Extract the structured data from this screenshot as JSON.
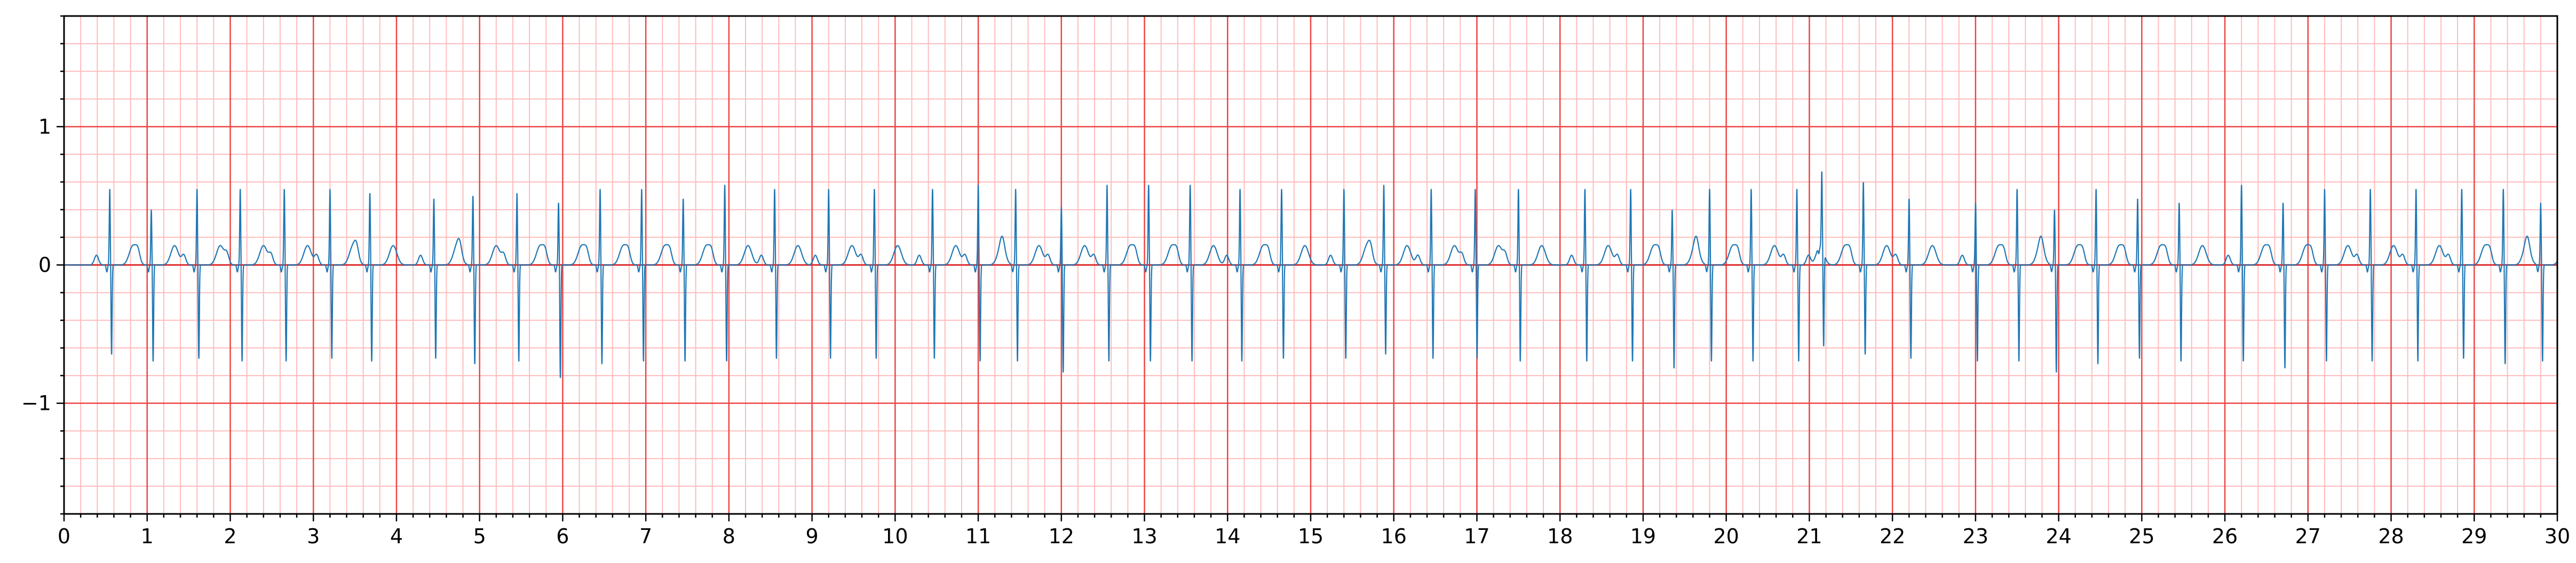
{
  "chart_data": {
    "type": "line",
    "title": "",
    "xlabel": "",
    "ylabel": "",
    "xlim": [
      0,
      30
    ],
    "ylim": [
      -1.8,
      1.8
    ],
    "x_ticks": [
      0,
      1,
      2,
      3,
      4,
      5,
      6,
      7,
      8,
      9,
      10,
      11,
      12,
      13,
      14,
      15,
      16,
      17,
      18,
      19,
      20,
      21,
      22,
      23,
      24,
      25,
      26,
      27,
      28,
      29,
      30
    ],
    "x_tick_labels": [
      "0",
      "1",
      "2",
      "3",
      "4",
      "5",
      "6",
      "7",
      "8",
      "9",
      "10",
      "11",
      "12",
      "13",
      "14",
      "15",
      "16",
      "17",
      "18",
      "19",
      "20",
      "21",
      "22",
      "23",
      "24",
      "25",
      "26",
      "27",
      "28",
      "29",
      "30"
    ],
    "y_ticks": [
      -1,
      0,
      1
    ],
    "y_tick_labels": [
      "−1",
      "0",
      "1"
    ],
    "grid": {
      "major": true,
      "minor": true,
      "major_step_x": 1,
      "minor_step_x": 0.2,
      "major_step_y": 1,
      "minor_step_y": 0.2,
      "major_color": "#ee4444",
      "minor_color": "#ffbcbc"
    },
    "colors": {
      "trace": "#1f77b4",
      "zero_line": "#dd3333"
    },
    "series": [
      {
        "name": "",
        "beats": [
          {
            "t": 0.55,
            "r": 0.55,
            "s": -0.65
          },
          {
            "t": 1.05,
            "r": 0.4,
            "s": -0.7
          },
          {
            "t": 1.6,
            "r": 0.55,
            "s": -0.68
          },
          {
            "t": 2.12,
            "r": 0.55,
            "s": -0.7
          },
          {
            "t": 2.65,
            "r": 0.55,
            "s": -0.7
          },
          {
            "t": 3.2,
            "r": 0.55,
            "s": -0.68
          },
          {
            "t": 3.68,
            "r": 0.52,
            "s": -0.7
          },
          {
            "t": 4.45,
            "r": 0.48,
            "s": -0.68
          },
          {
            "t": 4.92,
            "r": 0.5,
            "s": -0.72
          },
          {
            "t": 5.45,
            "r": 0.52,
            "s": -0.7
          },
          {
            "t": 5.95,
            "r": 0.45,
            "s": -0.82
          },
          {
            "t": 6.45,
            "r": 0.55,
            "s": -0.72
          },
          {
            "t": 6.95,
            "r": 0.55,
            "s": -0.7
          },
          {
            "t": 7.45,
            "r": 0.48,
            "s": -0.7
          },
          {
            "t": 7.95,
            "r": 0.58,
            "s": -0.7
          },
          {
            "t": 8.55,
            "r": 0.55,
            "s": -0.68
          },
          {
            "t": 9.2,
            "r": 0.55,
            "s": -0.68
          },
          {
            "t": 9.75,
            "r": 0.55,
            "s": -0.68
          },
          {
            "t": 10.45,
            "r": 0.55,
            "s": -0.68
          },
          {
            "t": 11.0,
            "r": 0.58,
            "s": -0.7
          },
          {
            "t": 11.45,
            "r": 0.55,
            "s": -0.7
          },
          {
            "t": 12.0,
            "r": 0.42,
            "s": -0.78
          },
          {
            "t": 12.55,
            "r": 0.58,
            "s": -0.7
          },
          {
            "t": 13.05,
            "r": 0.58,
            "s": -0.7
          },
          {
            "t": 13.55,
            "r": 0.58,
            "s": -0.7
          },
          {
            "t": 14.15,
            "r": 0.55,
            "s": -0.7
          },
          {
            "t": 14.65,
            "r": 0.55,
            "s": -0.68
          },
          {
            "t": 15.4,
            "r": 0.55,
            "s": -0.68
          },
          {
            "t": 15.88,
            "r": 0.58,
            "s": -0.65
          },
          {
            "t": 16.45,
            "r": 0.55,
            "s": -0.68
          },
          {
            "t": 16.98,
            "r": 0.55,
            "s": -0.68
          },
          {
            "t": 17.5,
            "r": 0.55,
            "s": -0.7
          },
          {
            "t": 18.3,
            "r": 0.55,
            "s": -0.7
          },
          {
            "t": 18.85,
            "r": 0.55,
            "s": -0.7
          },
          {
            "t": 19.35,
            "r": 0.4,
            "s": -0.75
          },
          {
            "t": 19.8,
            "r": 0.55,
            "s": -0.7
          },
          {
            "t": 20.3,
            "r": 0.55,
            "s": -0.7
          },
          {
            "t": 20.85,
            "r": 0.55,
            "s": -0.7
          },
          {
            "t": 21.15,
            "r": 0.55,
            "s": -0.68
          },
          {
            "t": 21.65,
            "r": 0.6,
            "s": -0.65
          },
          {
            "t": 22.2,
            "r": 0.48,
            "s": -0.68
          },
          {
            "t": 23.0,
            "r": 0.45,
            "s": -0.7
          },
          {
            "t": 23.5,
            "r": 0.55,
            "s": -0.7
          },
          {
            "t": 23.95,
            "r": 0.4,
            "s": -0.78
          },
          {
            "t": 24.45,
            "r": 0.55,
            "s": -0.72
          },
          {
            "t": 24.95,
            "r": 0.48,
            "s": -0.68
          },
          {
            "t": 25.45,
            "r": 0.45,
            "s": -0.7
          },
          {
            "t": 26.2,
            "r": 0.58,
            "s": -0.7
          },
          {
            "t": 26.7,
            "r": 0.45,
            "s": -0.75
          },
          {
            "t": 27.2,
            "r": 0.55,
            "s": -0.7
          },
          {
            "t": 27.75,
            "r": 0.55,
            "s": -0.7
          },
          {
            "t": 28.3,
            "r": 0.55,
            "s": -0.7
          },
          {
            "t": 28.85,
            "r": 0.55,
            "s": -0.68
          },
          {
            "t": 29.35,
            "r": 0.55,
            "s": -0.72
          },
          {
            "t": 29.8,
            "r": 0.45,
            "s": -0.7
          }
        ]
      }
    ]
  }
}
